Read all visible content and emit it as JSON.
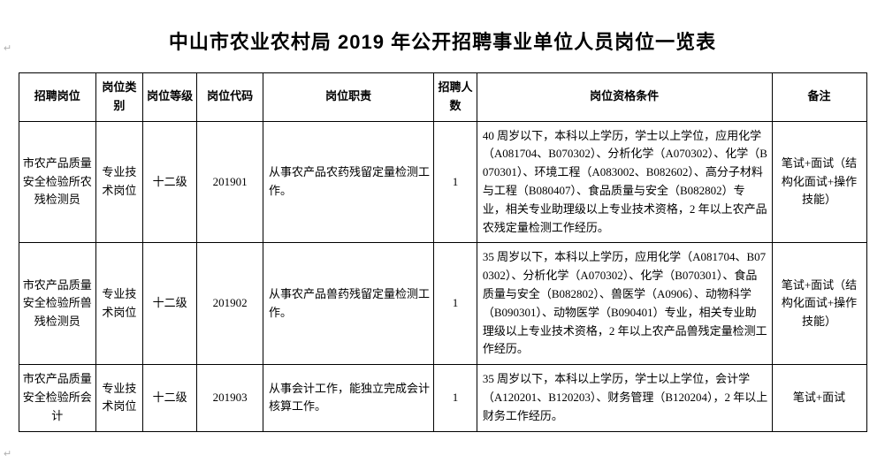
{
  "title": "中山市农业农村局 2019 年公开招聘事业单位人员岗位一览表",
  "table": {
    "columns": [
      "招聘岗位",
      "岗位类别",
      "岗位等级",
      "岗位代码",
      "岗位职责",
      "招聘人数",
      "岗位资格条件",
      "备注"
    ],
    "rows": [
      {
        "position": "市农产品质量安全检验所农残检测员",
        "category": "专业技术岗位",
        "level": "十二级",
        "code": "201901",
        "duty": "从事农产品农药残留定量检测工作。",
        "count": "1",
        "qualification": "40 周岁以下，本科以上学历，学士以上学位，应用化学（A081704、B070302）、分析化学（A070302）、化学（B070301）、环境工程（A083002、B082602）、高分子材料与工程（B080407）、食品质量与安全（B082802）专业，相关专业助理级以上专业技术资格，2 年以上农产品农残定量检测工作经历。",
        "remark": "笔试+面试（结构化面试+操作技能）"
      },
      {
        "position": "市农产品质量安全检验所兽残检测员",
        "category": "专业技术岗位",
        "level": "十二级",
        "code": "201902",
        "duty": "从事农产品兽药残留定量检测工作。",
        "count": "1",
        "qualification": "35 周岁以下，本科以上学历，应用化学（A081704、B070302）、分析化学（A070302）、化学（B070301）、食品质量与安全（B082802）、兽医学（A0906）、动物科学（B090301）、动物医学（B090401）专业，相关专业助理级以上专业技术资格，2 年以上农产品兽残定量检测工作经历。",
        "remark": "笔试+面试（结构化面试+操作技能）"
      },
      {
        "position": "市农产品质量安全检验所会计",
        "category": "专业技术岗位",
        "level": "十二级",
        "code": "201903",
        "duty": "从事会计工作，能独立完成会计核算工作。",
        "count": "1",
        "qualification": "35 周岁以下，本科以上学历，学士以上学位，会计学（A120201、B120203）、财务管理（B120204），2 年以上财务工作经历。",
        "remark": "笔试+面试"
      }
    ]
  },
  "anchor_glyph": "↵"
}
